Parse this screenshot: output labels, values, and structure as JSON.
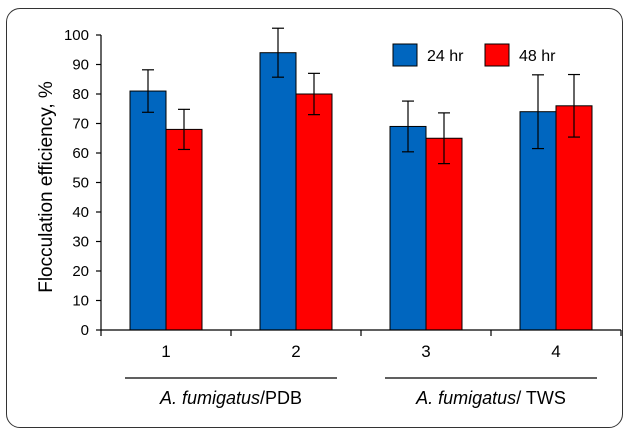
{
  "chart_data": {
    "type": "bar",
    "title": "",
    "xlabel": "",
    "ylabel": "Flocculation efficiency, %",
    "ylim": [
      0,
      100
    ],
    "yticks": [
      0,
      10,
      20,
      30,
      40,
      50,
      60,
      70,
      80,
      90,
      100
    ],
    "categories": [
      "1",
      "2",
      "3",
      "4"
    ],
    "series": [
      {
        "name": "24 hr",
        "color": "#0066bf",
        "values": [
          81,
          94,
          69,
          74
        ],
        "errors": [
          7.2,
          8.3,
          8.6,
          12.5
        ]
      },
      {
        "name": "48 hr",
        "color": "#ff0000",
        "values": [
          68,
          80,
          65,
          76
        ],
        "errors": [
          6.8,
          7.0,
          8.6,
          10.6
        ]
      }
    ],
    "legend_position": "top-right",
    "grid": false,
    "group_labels": [
      {
        "italic": "A. fumigatus",
        "plain": "/PDB",
        "categories": [
          "1",
          "2"
        ]
      },
      {
        "italic": "A. fumigatus",
        "plain": "/ TWS",
        "categories": [
          "3",
          "4"
        ]
      }
    ]
  }
}
